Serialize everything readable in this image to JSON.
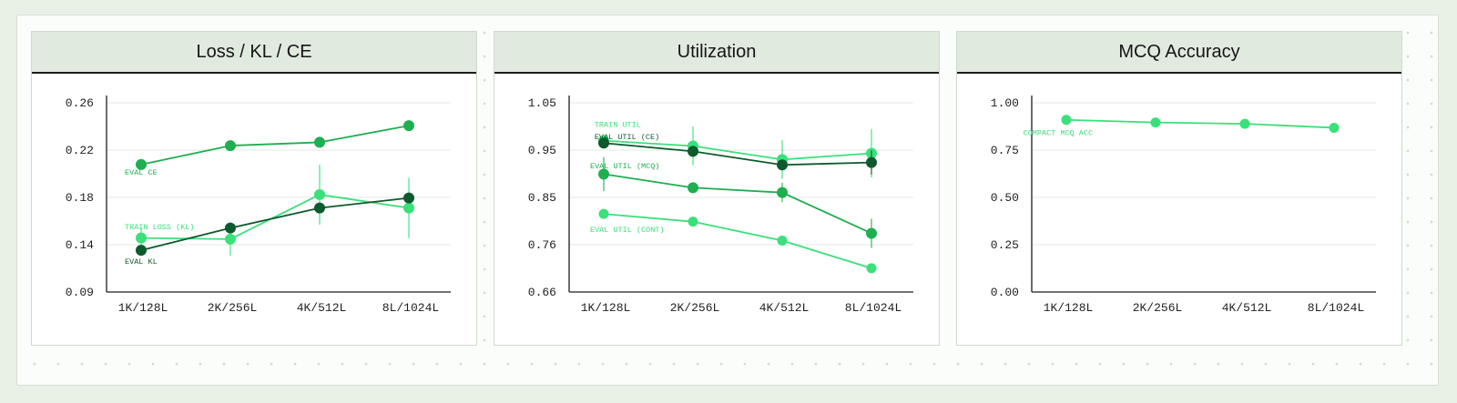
{
  "chart_data": [
    {
      "type": "line",
      "title": "Loss / KL / CE",
      "categories": [
        "1K/128L",
        "2K/256L",
        "4K/512L",
        "8L/1024L"
      ],
      "yticks": [
        "0.09",
        "0.14",
        "0.18",
        "0.22",
        "0.26"
      ],
      "ylim": [
        0.09,
        0.26
      ],
      "grid": true,
      "series": [
        {
          "name": "EVAL CE",
          "values": [
            0.2045,
            0.2215,
            0.2245,
            0.2395
          ],
          "errors": [
            0.004,
            0.004,
            0.004,
            0.002
          ],
          "color": "#1fae50",
          "radius": 6
        },
        {
          "name": "TRAIN LOSS (KL)",
          "values": [
            0.1385,
            0.1375,
            0.1775,
            0.1655
          ],
          "errors": [
            0.009,
            0.015,
            0.027,
            0.027
          ],
          "color": "#3ae07a",
          "radius": 6
        },
        {
          "name": "EVAL KL",
          "values": [
            0.1275,
            0.1475,
            0.1655,
            0.1745
          ],
          "errors": [
            0.003,
            0.003,
            0.003,
            0.003
          ],
          "color": "#0d5a2c",
          "radius": 6
        }
      ],
      "annotations": [
        {
          "text": "EVAL CE",
          "x": 0,
          "y": 0.1955,
          "color": "#1fae50"
        },
        {
          "text": "TRAIN LOSS (KL)",
          "x": 0,
          "y": 0.1465,
          "color": "#3ae07a"
        },
        {
          "text": "EVAL KL",
          "x": 0,
          "y": 0.1155,
          "color": "#0d5a2c"
        }
      ]
    },
    {
      "type": "line",
      "title": "Utilization",
      "categories": [
        "1K/128L",
        "2K/256L",
        "4K/512L",
        "8L/1024L"
      ],
      "yticks": [
        "0.66",
        "0.76",
        "0.85",
        "0.95",
        "1.05"
      ],
      "ylim": [
        0.66,
        1.05
      ],
      "grid": true,
      "series": [
        {
          "name": "TRAIN UTIL",
          "values": [
            0.972,
            0.961,
            0.933,
            0.946
          ],
          "errors": [
            0.0,
            0.04,
            0.04,
            0.05
          ],
          "color": "#3ae07a",
          "radius": 6
        },
        {
          "name": "EVAL UTIL (CE)",
          "values": [
            0.967,
            0.95,
            0.922,
            0.927
          ],
          "errors": [
            0.0,
            0.0,
            0.0,
            0.025
          ],
          "color": "#0d5a2c",
          "radius": 6
        },
        {
          "name": "EVAL UTIL (MCQ)",
          "values": [
            0.903,
            0.875,
            0.865,
            0.781
          ],
          "errors": [
            0.035,
            0.0,
            0.02,
            0.03
          ],
          "color": "#1fae50",
          "radius": 6
        },
        {
          "name": "EVAL UTIL (CONT)",
          "values": [
            0.821,
            0.805,
            0.766,
            0.709
          ],
          "errors": [
            0.0,
            0.0,
            0.0,
            0.0
          ],
          "color": "#3ae07a",
          "radius": 5.5
        }
      ],
      "annotations": [
        {
          "text": "TRAIN UTIL",
          "x": 0.08,
          "y": 1.0,
          "color": "#3ae07a"
        },
        {
          "text": "EVAL UTIL (CE)",
          "x": 0.08,
          "y": 0.975,
          "color": "#0d5a2c"
        },
        {
          "text": "EVAL UTIL (MCQ)",
          "x": 0.03,
          "y": 0.915,
          "color": "#1fae50"
        },
        {
          "text": "EVAL UTIL (CONT)",
          "x": 0.03,
          "y": 0.784,
          "color": "#3ae07a"
        }
      ]
    },
    {
      "type": "line",
      "title": "MCQ Accuracy",
      "categories": [
        "1K/128L",
        "2K/256L",
        "4K/512L",
        "8L/1024L"
      ],
      "yticks": [
        "0.00",
        "0.25",
        "0.50",
        "0.75",
        "1.00"
      ],
      "ylim": [
        0.0,
        1.0
      ],
      "grid": true,
      "series": [
        {
          "name": "COMPACT MCQ ACC",
          "values": [
            0.91,
            0.896,
            0.889,
            0.868
          ],
          "errors": [
            0,
            0,
            0,
            0
          ],
          "color": "#3ae07a",
          "radius": 5.5
        }
      ],
      "annotations": [
        {
          "text": "COMPACT MCQ ACC",
          "x": -0.3,
          "y": 0.83,
          "color": "#3ae07a"
        }
      ]
    }
  ]
}
